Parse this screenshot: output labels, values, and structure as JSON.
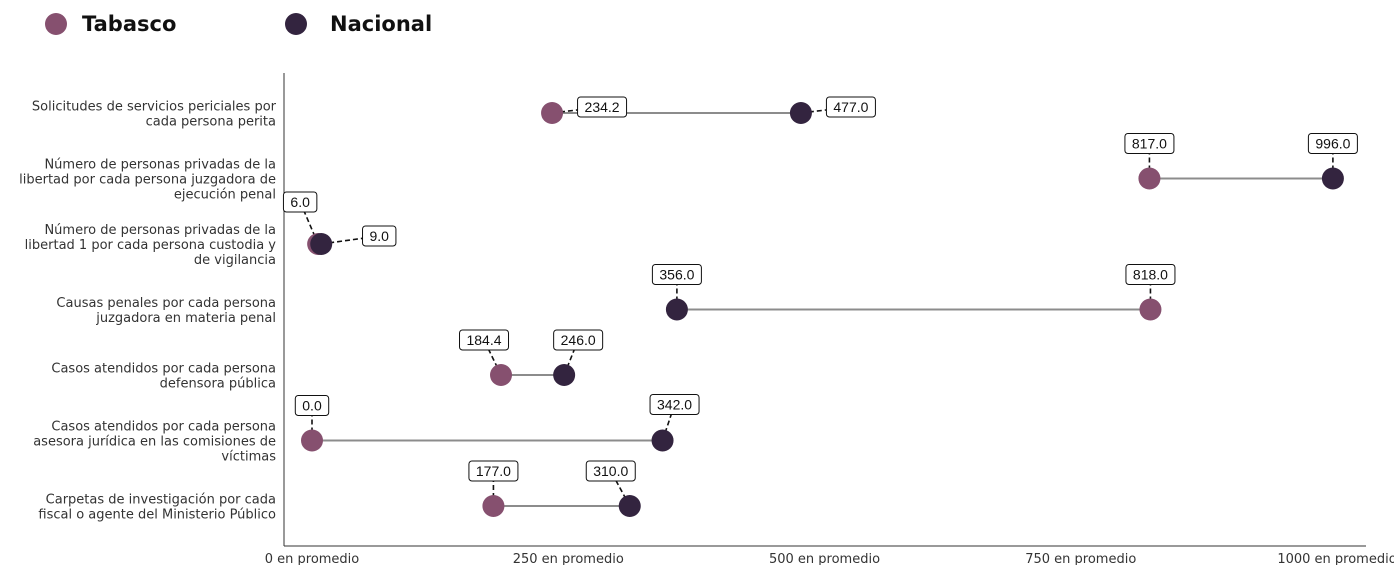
{
  "colors": {
    "tabasco": "#86506f",
    "nacional": "#33243f",
    "connector": "#8c8c8c",
    "axis": "#333333"
  },
  "chart_data": {
    "type": "dumbbell",
    "title": "",
    "xlabel": "",
    "ylabel": "",
    "xlim": [
      0,
      1000
    ],
    "legend_position": "top-left",
    "series": [
      {
        "name": "Tabasco",
        "color": "#86506f"
      },
      {
        "name": "Nacional",
        "color": "#33243f"
      }
    ],
    "x_ticks": [
      {
        "value": 0,
        "label": "0 en promedio"
      },
      {
        "value": 250,
        "label": "250 en promedio"
      },
      {
        "value": 500,
        "label": "500 en promedio"
      },
      {
        "value": 750,
        "label": "750 en promedio"
      },
      {
        "value": 1000,
        "label": "1000 en promedio"
      }
    ],
    "categories": [
      {
        "label_lines": [
          "Solicitudes de servicios periciales por",
          "cada persona perita"
        ],
        "tabasco": 234.2,
        "tabasco_label": "234.2",
        "nacional": 477.0,
        "nacional_label": "477.0"
      },
      {
        "label_lines": [
          "Número de personas privadas de la",
          "libertad por cada persona juzgadora de",
          "ejecución penal"
        ],
        "tabasco": 817.0,
        "tabasco_label": "817.0",
        "nacional": 996.0,
        "nacional_label": "996.0"
      },
      {
        "label_lines": [
          "Número de personas privadas de la",
          "libertad 1 por cada persona custodia y",
          "de vigilancia"
        ],
        "tabasco": 6.0,
        "tabasco_label": "6.0",
        "nacional": 9.0,
        "nacional_label": "9.0"
      },
      {
        "label_lines": [
          "Causas penales por cada persona",
          "juzgadora en materia penal"
        ],
        "tabasco": 818.0,
        "tabasco_label": "818.0",
        "nacional": 356.0,
        "nacional_label": "356.0"
      },
      {
        "label_lines": [
          "Casos atendidos por cada persona",
          "defensora pública"
        ],
        "tabasco": 184.4,
        "tabasco_label": "184.4",
        "nacional": 246.0,
        "nacional_label": "246.0"
      },
      {
        "label_lines": [
          "Casos atendidos por cada persona",
          "asesora jurídica en las comisiones de",
          "víctimas"
        ],
        "tabasco": 0.0,
        "tabasco_label": "0.0",
        "nacional": 342.0,
        "nacional_label": "342.0"
      },
      {
        "label_lines": [
          "Carpetas de investigación por cada",
          "fiscal o agente del Ministerio Público"
        ],
        "tabasco": 177.0,
        "tabasco_label": "177.0",
        "nacional": 310.0,
        "nacional_label": "310.0"
      }
    ]
  }
}
